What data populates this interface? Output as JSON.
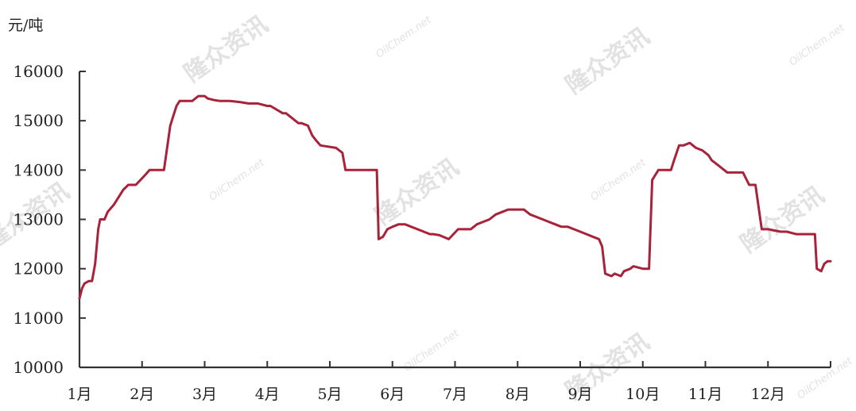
{
  "watermark": {
    "text": "隆众资讯",
    "url": "OilChem.net"
  },
  "chart_data": {
    "type": "line",
    "unit_label": "元/吨",
    "title": "",
    "xlabel": "",
    "ylabel": "元/吨",
    "ylim": [
      10000,
      16000
    ],
    "yticks": [
      10000,
      11000,
      12000,
      13000,
      14000,
      15000,
      16000
    ],
    "xlim": [
      1,
      13.0
    ],
    "x_categories": [
      "1月",
      "2月",
      "3月",
      "4月",
      "5月",
      "6月",
      "7月",
      "8月",
      "9月",
      "10月",
      "11月",
      "12月"
    ],
    "grid": false,
    "legend": "none",
    "line_color": "#a8223a",
    "series": [
      {
        "x": [
          1.0,
          1.04,
          1.08,
          1.15,
          1.2,
          1.25,
          1.3,
          1.33,
          1.4,
          1.45,
          1.55,
          1.6,
          1.7,
          1.78,
          1.85,
          1.9,
          2.05,
          2.12,
          2.25,
          2.35,
          2.45,
          2.5,
          2.55,
          2.6,
          2.65,
          2.7,
          2.8,
          2.9,
          3.0,
          3.05,
          3.15,
          3.25,
          3.4,
          3.55,
          3.7,
          3.85,
          4.0,
          4.05,
          4.25,
          4.3,
          4.5,
          4.55,
          4.65,
          4.72,
          4.78,
          4.85,
          5.1,
          5.15,
          5.2,
          5.25,
          5.3,
          5.75,
          5.78,
          5.85,
          5.92,
          6.0,
          6.1,
          6.2,
          6.3,
          6.4,
          6.5,
          6.6,
          6.65,
          6.75,
          6.9,
          7.05,
          7.15,
          7.25,
          7.35,
          7.45,
          7.55,
          7.65,
          7.75,
          7.85,
          8.0,
          8.1,
          8.2,
          8.3,
          8.4,
          8.5,
          8.6,
          8.7,
          8.8,
          8.9,
          9.0,
          9.1,
          9.2,
          9.3,
          9.35,
          9.4,
          9.5,
          9.55,
          9.65,
          9.7,
          9.8,
          9.85,
          10.0,
          10.1,
          10.15,
          10.25,
          10.45,
          10.5,
          10.58,
          10.65,
          10.75,
          10.85,
          10.95,
          11.0,
          11.05,
          11.1,
          11.2,
          11.35,
          11.5,
          11.55,
          11.6,
          11.7,
          11.8,
          11.9,
          12.0,
          12.2,
          12.3,
          12.45,
          12.55,
          12.65,
          12.75,
          12.78,
          12.85,
          12.9,
          12.95,
          13.0
        ],
        "y": [
          11400,
          11600,
          11700,
          11750,
          11750,
          12100,
          12800,
          13000,
          13000,
          13150,
          13300,
          13400,
          13600,
          13700,
          13700,
          13700,
          13900,
          14000,
          14000,
          14000,
          14900,
          15100,
          15300,
          15400,
          15400,
          15400,
          15400,
          15500,
          15500,
          15450,
          15420,
          15400,
          15400,
          15380,
          15350,
          15350,
          15300,
          15300,
          15150,
          15150,
          14950,
          14950,
          14900,
          14700,
          14600,
          14500,
          14450,
          14400,
          14350,
          14000,
          14000,
          14000,
          12600,
          12650,
          12800,
          12850,
          12900,
          12900,
          12850,
          12800,
          12750,
          12700,
          12700,
          12680,
          12600,
          12800,
          12800,
          12800,
          12900,
          12950,
          13000,
          13100,
          13150,
          13200,
          13200,
          13200,
          13100,
          13050,
          13000,
          12950,
          12900,
          12850,
          12850,
          12800,
          12750,
          12700,
          12650,
          12600,
          12450,
          11900,
          11850,
          11900,
          11850,
          11950,
          12000,
          12050,
          12000,
          12000,
          13800,
          14000,
          14000,
          14200,
          14500,
          14500,
          14550,
          14450,
          14400,
          14350,
          14300,
          14200,
          14100,
          13950,
          13950,
          13950,
          13950,
          13700,
          13700,
          12800,
          12800,
          12750,
          12750,
          12700,
          12700,
          12700,
          12700,
          12000,
          11950,
          12100,
          12150,
          12150
        ]
      }
    ]
  }
}
